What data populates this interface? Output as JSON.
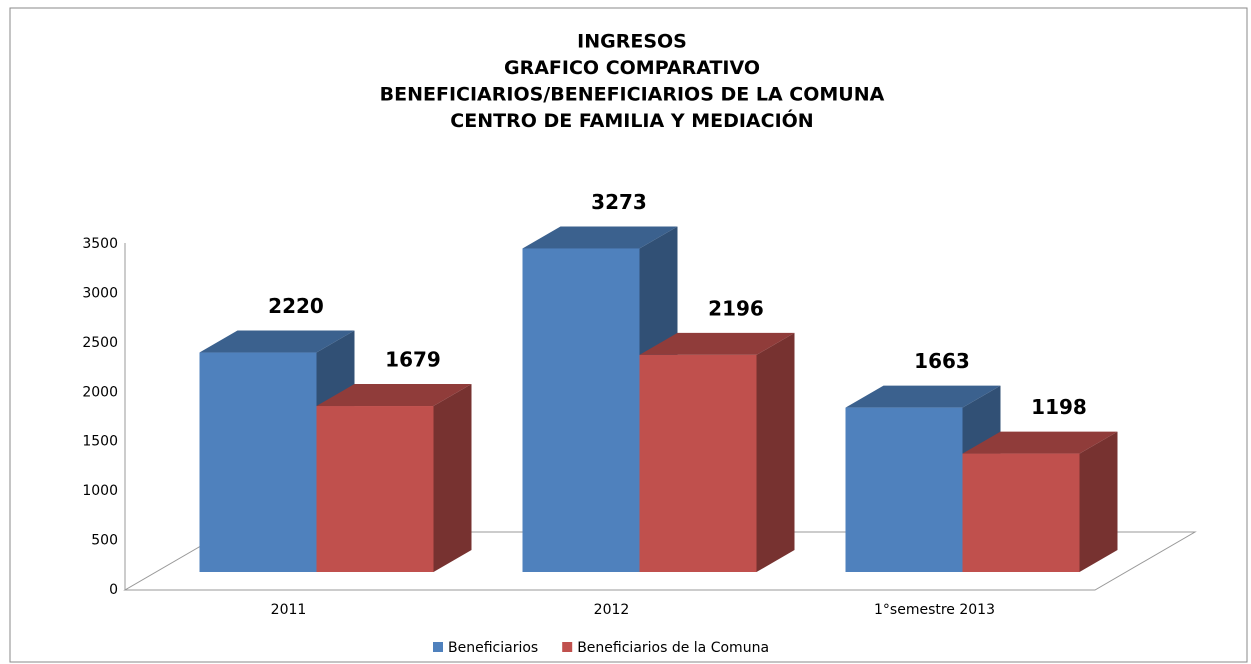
{
  "chart_data": {
    "type": "bar3d",
    "title": [
      "INGRESOS",
      "GRAFICO COMPARATIVO",
      "BENEFICIARIOS/BENEFICIARIOS DE LA COMUNA",
      "CENTRO DE FAMILIA Y MEDIACIÓN"
    ],
    "categories": [
      "2011",
      "2012",
      "1°semestre 2013"
    ],
    "series": [
      {
        "name": "Beneficiarios",
        "color": "#4f81bd",
        "values": [
          2220,
          3273,
          1663
        ]
      },
      {
        "name": "Beneficiarios de la Comuna",
        "color": "#c0504d",
        "values": [
          1679,
          2196,
          1198
        ]
      }
    ],
    "ylim": [
      0,
      3500
    ],
    "yticks": [
      0,
      500,
      1000,
      1500,
      2000,
      2500,
      3000,
      3500
    ],
    "grid": false,
    "legend": "bottom"
  }
}
